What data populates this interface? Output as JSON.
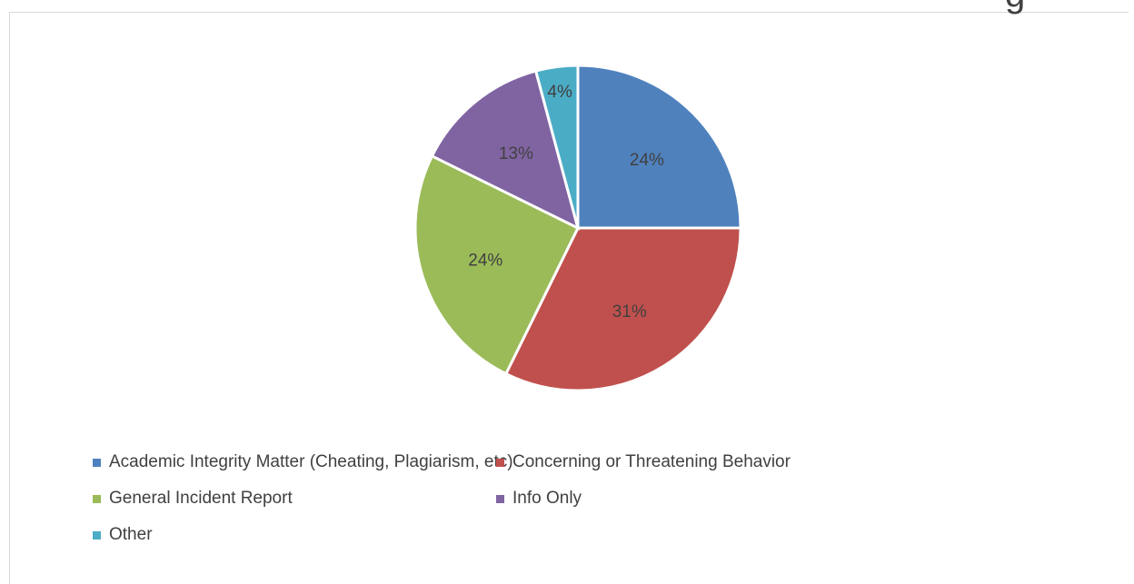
{
  "chart_data": {
    "type": "pie",
    "title": "",
    "categories": [
      "Academic Integrity Matter (Cheating, Plagiarism, etc)",
      "Concerning or Threatening Behavior",
      "General Incident Report",
      "Info Only",
      "Other"
    ],
    "values": [
      24,
      31,
      24,
      13,
      4
    ],
    "value_labels": [
      "24%",
      "31%",
      "24%",
      "13%",
      "4%"
    ],
    "colors": [
      "#4F81BD",
      "#C0504D",
      "#9BBB59",
      "#8064A2",
      "#4BACC6"
    ],
    "legend_position": "bottom"
  },
  "clipped_text": "g"
}
